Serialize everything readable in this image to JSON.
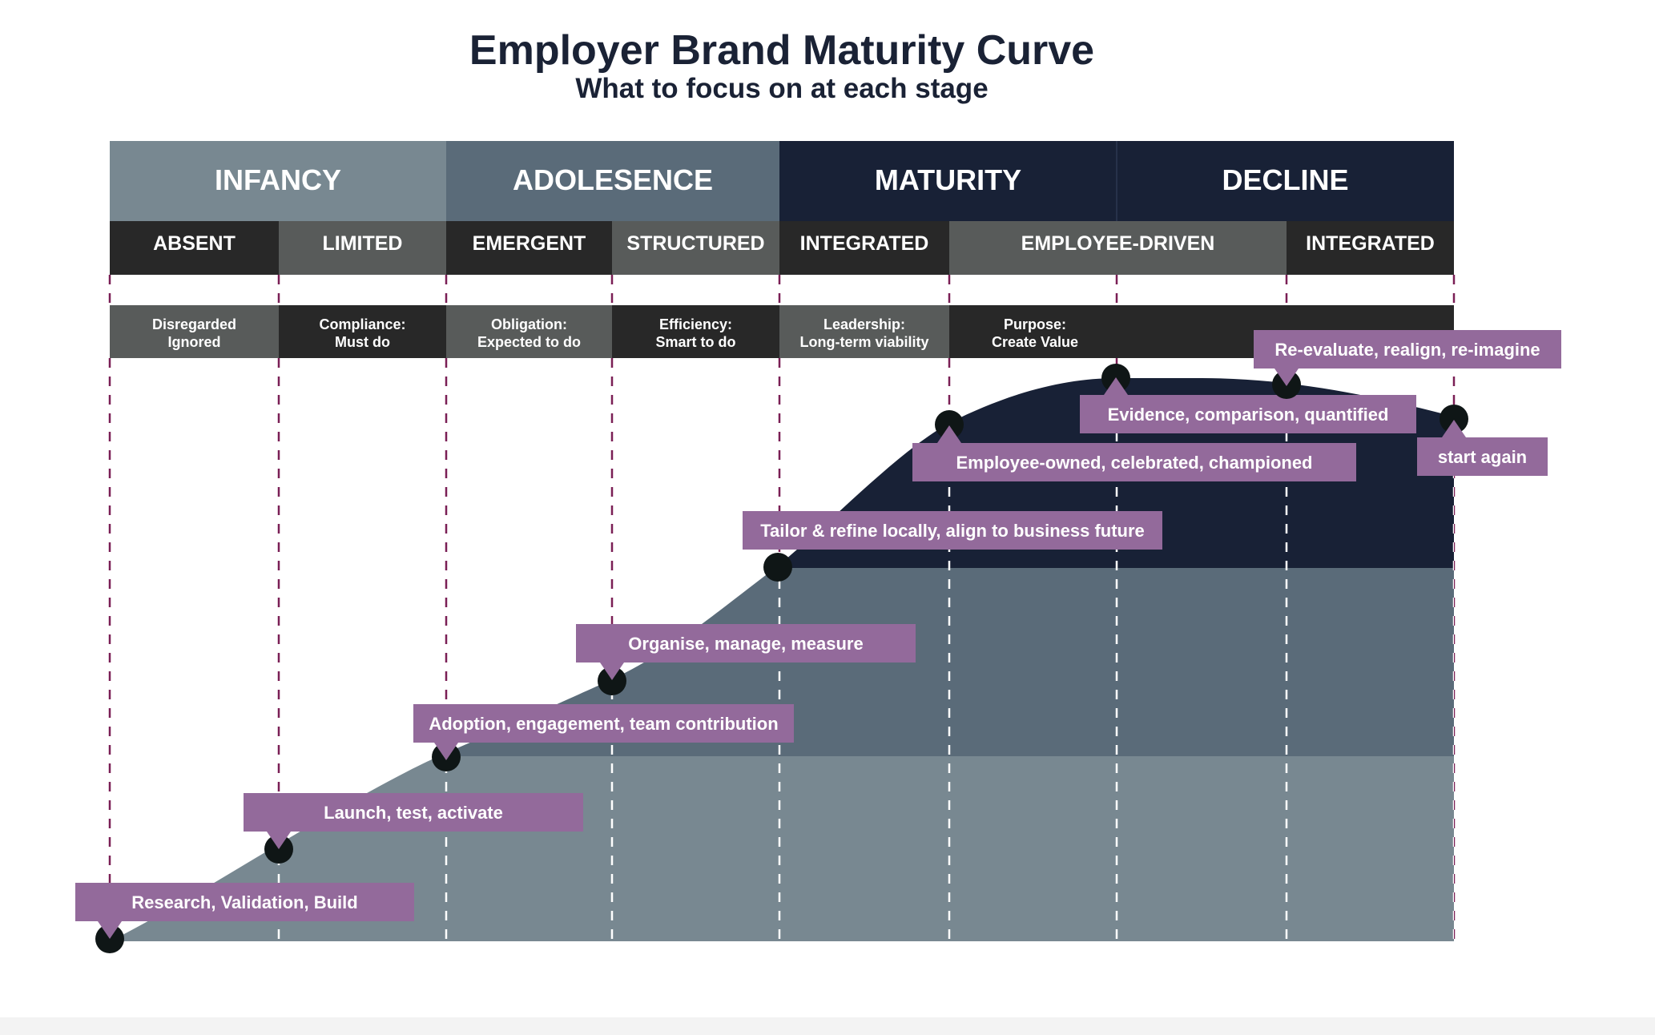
{
  "title": "Employer Brand Maturity Curve",
  "subtitle": "What to focus on at each stage",
  "colors": {
    "title": "#1a2235",
    "infancy": "#788891",
    "adolescence": "#5a6b79",
    "maturity": "#182136",
    "decline": "#182136",
    "sub_dark": "#282828",
    "sub_mid": "#585b5a",
    "callout": "#936a9b",
    "marker": "#0f1616",
    "dash_outside": "#7a1f55",
    "dash_inside": "#ffffff"
  },
  "phases": [
    {
      "label": "INFANCY",
      "color": "#788891"
    },
    {
      "label": "ADOLESENCE",
      "color": "#5a6b79"
    },
    {
      "label": "MATURITY",
      "color": "#182136"
    },
    {
      "label": "DECLINE",
      "color": "#182136"
    }
  ],
  "sub_phases": [
    {
      "label": "ABSENT",
      "tone": "dark"
    },
    {
      "label": "LIMITED",
      "tone": "mid"
    },
    {
      "label": "EMERGENT",
      "tone": "dark"
    },
    {
      "label": "STRUCTURED",
      "tone": "mid"
    },
    {
      "label": "INTEGRATED",
      "tone": "dark"
    },
    {
      "label": "EMPLOYEE-DRIVEN",
      "tone": "mid"
    },
    {
      "label": "INTEGRATED",
      "tone": "dark"
    }
  ],
  "mindsets": [
    {
      "line1": "Disregarded",
      "line2": "Ignored",
      "tone": "mid"
    },
    {
      "line1": "Compliance:",
      "line2": "Must do",
      "tone": "dark"
    },
    {
      "line1": "Obligation:",
      "line2": "Expected to do",
      "tone": "mid"
    },
    {
      "line1": "Efficiency:",
      "line2": "Smart to do",
      "tone": "dark"
    },
    {
      "line1": "Leadership:",
      "line2": "Long-term viability",
      "tone": "mid"
    },
    {
      "line1": "Purpose:",
      "line2": "Create Value",
      "tone": "dark"
    }
  ],
  "milestones": [
    {
      "label": "Research, Validation, Build",
      "level": 0.0
    },
    {
      "label": "Launch, test, activate",
      "level": 0.16
    },
    {
      "label": "Adoption, engagement, team contribution",
      "level": 0.33
    },
    {
      "label": "Organise, manage, measure",
      "level": 0.47
    },
    {
      "label": "Tailor & refine locally, align to business future",
      "level": 0.68
    },
    {
      "label": "Employee-owned, celebrated, championed",
      "level": 0.93
    },
    {
      "label": "Evidence, comparison, quantified",
      "level": 1.0
    },
    {
      "label": "Re-evaluate, realign, re-imagine",
      "level": 0.99
    },
    {
      "label": "start again",
      "level": 0.94
    }
  ]
}
